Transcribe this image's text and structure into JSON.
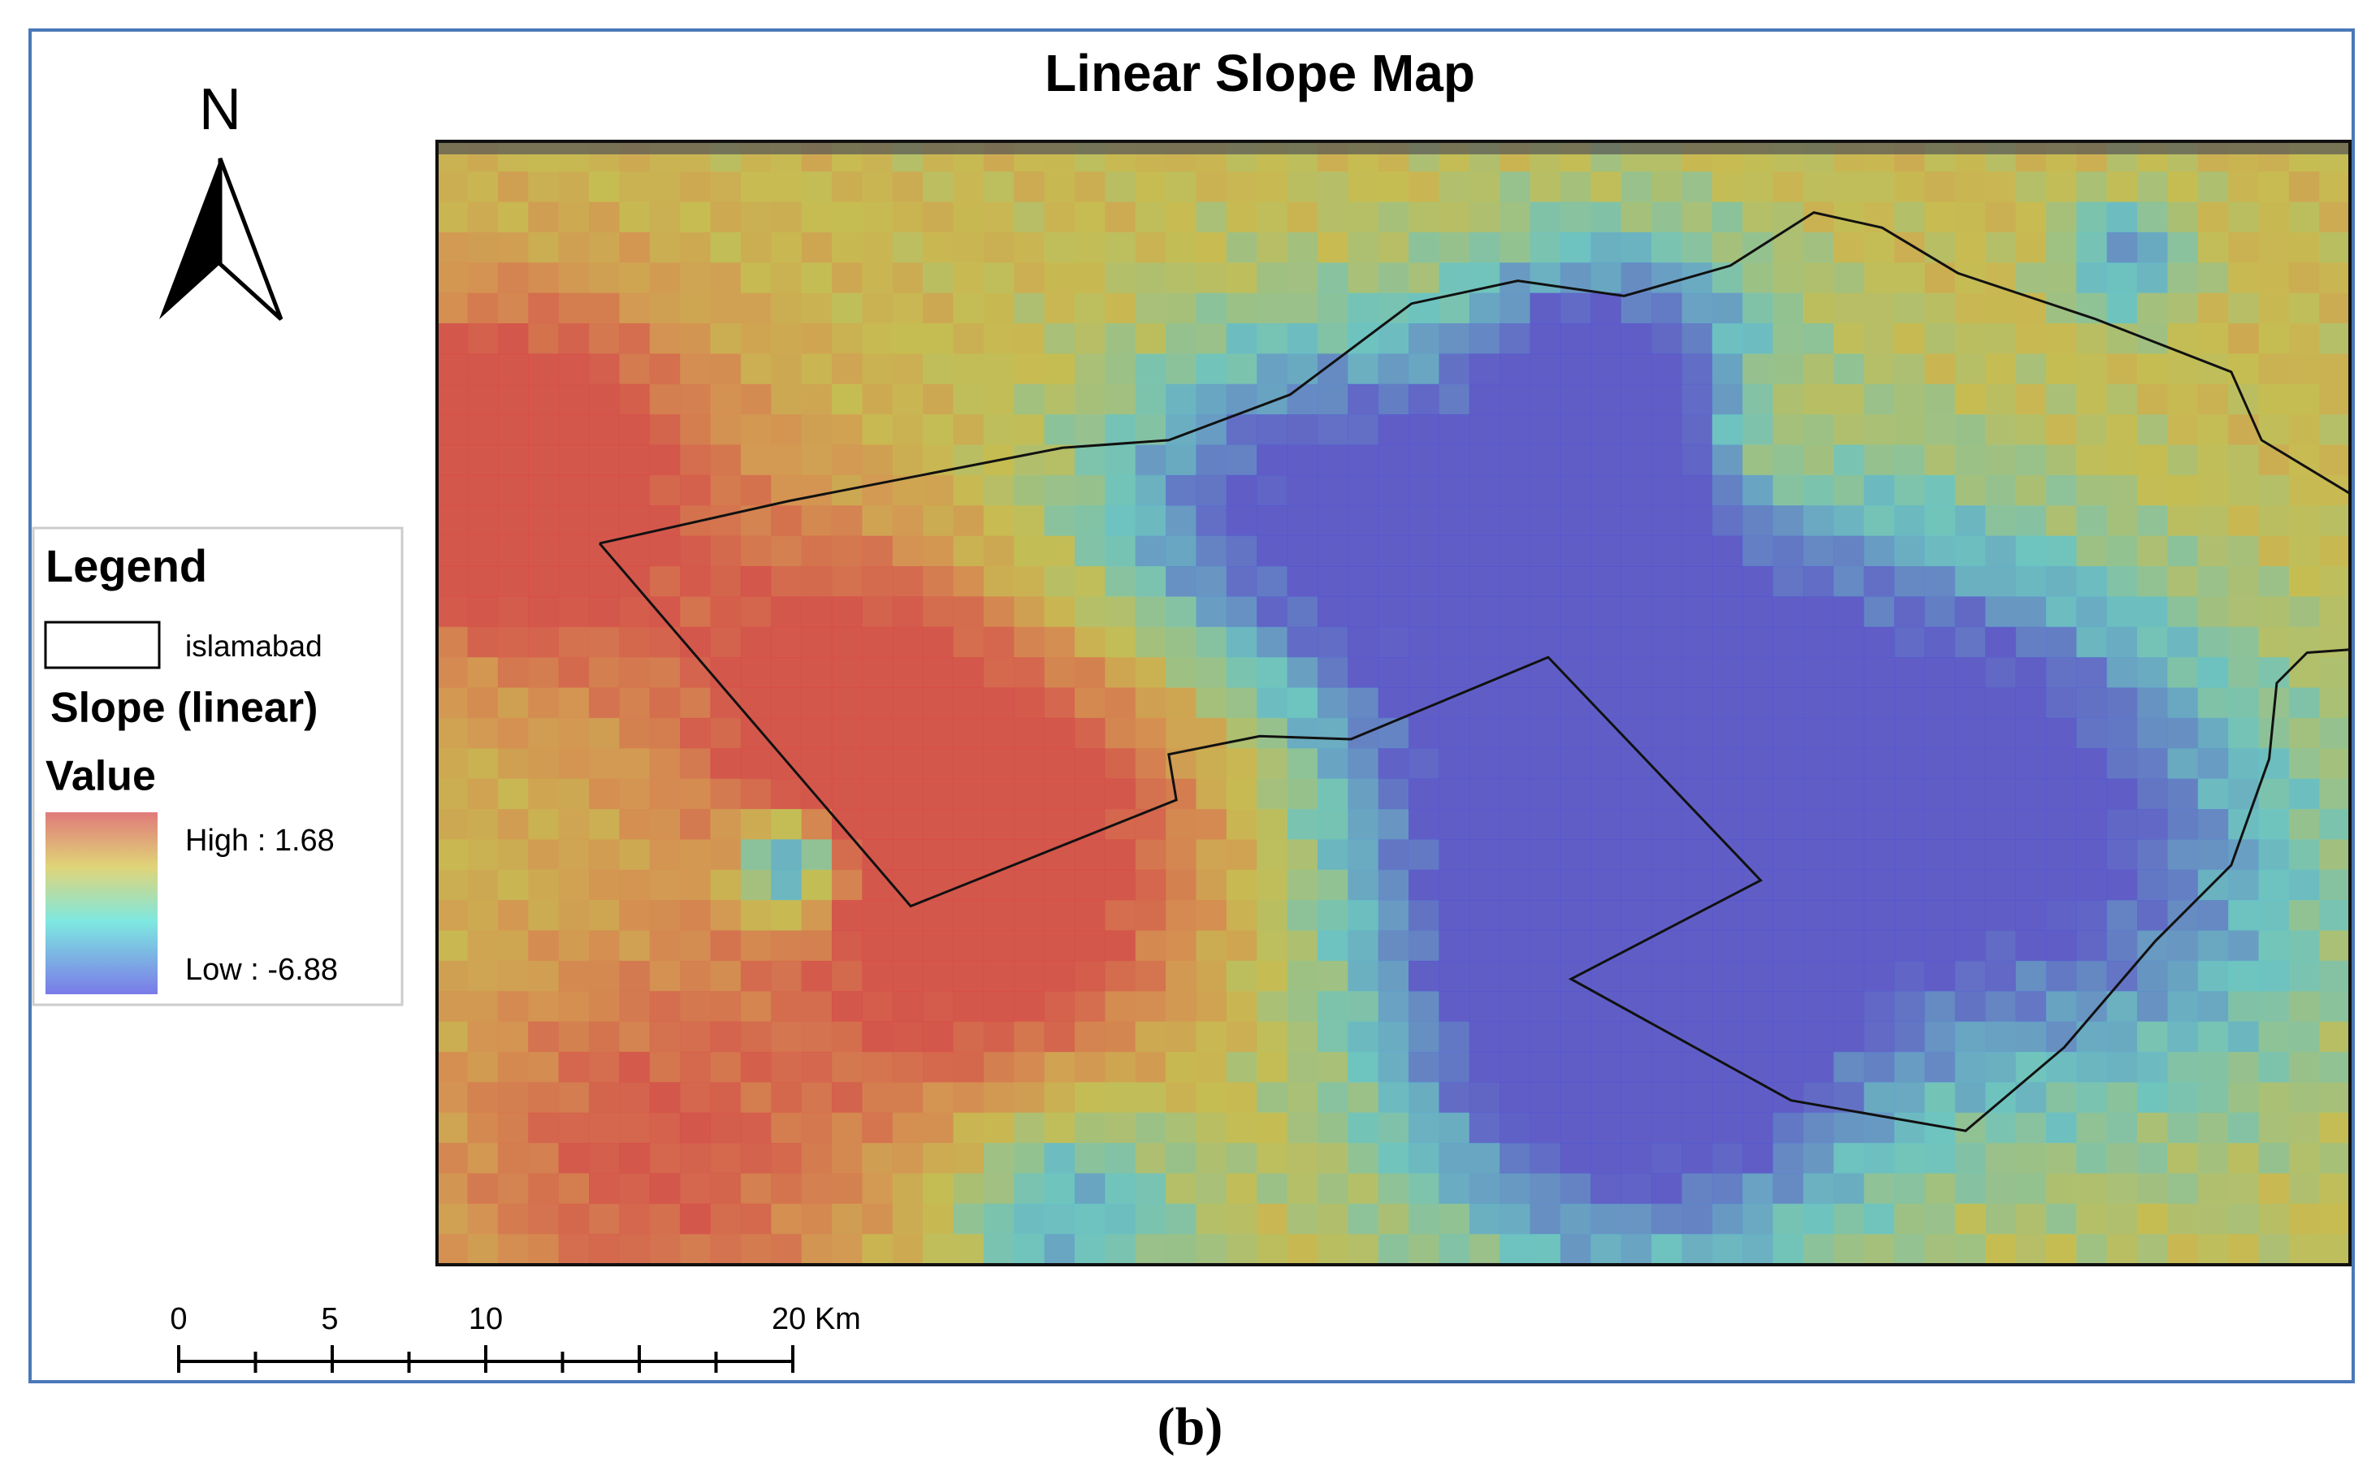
{
  "title": "Linear Slope Map",
  "north": "N",
  "legend": {
    "title": "Legend",
    "items": [
      {
        "label": "islamabad"
      }
    ],
    "layer": "Slope (linear)",
    "field": "Value",
    "high": "High : 1.68",
    "low": "Low : -6.88"
  },
  "scale_bar": {
    "labels": [
      "0",
      "5",
      "10",
      "20 Km"
    ]
  },
  "caption": "(b)"
}
